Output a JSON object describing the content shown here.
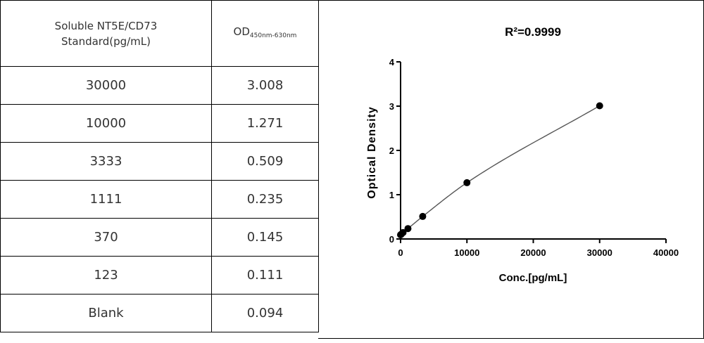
{
  "table": {
    "header_col1": "Soluble NT5E/CD73 Standard(pg/mL)",
    "header_col2_main": "OD",
    "header_col2_sub": "450nm-630nm",
    "rows": [
      {
        "conc": "30000",
        "od": "3.008"
      },
      {
        "conc": "10000",
        "od": "1.271"
      },
      {
        "conc": "3333",
        "od": "0.509"
      },
      {
        "conc": "1111",
        "od": "0.235"
      },
      {
        "conc": "370",
        "od": "0.145"
      },
      {
        "conc": "123",
        "od": "0.111"
      },
      {
        "conc": "Blank",
        "od": "0.094"
      }
    ]
  },
  "chart_data": {
    "type": "scatter",
    "title": "R²=0.9999",
    "xlabel": "Conc.[pg/mL]",
    "ylabel": "Optical Density",
    "xlim": [
      0,
      40000
    ],
    "ylim": [
      0,
      4
    ],
    "x_ticks": [
      "0",
      "10000",
      "20000",
      "30000",
      "40000"
    ],
    "y_ticks": [
      "0",
      "1",
      "2",
      "3",
      "4"
    ],
    "grid": false,
    "fit": "smooth standard curve through points",
    "points": [
      {
        "x": 0,
        "y": 0.094
      },
      {
        "x": 123,
        "y": 0.111
      },
      {
        "x": 370,
        "y": 0.145
      },
      {
        "x": 1111,
        "y": 0.235
      },
      {
        "x": 3333,
        "y": 0.509
      },
      {
        "x": 10000,
        "y": 1.271
      },
      {
        "x": 30000,
        "y": 3.008
      }
    ],
    "marker_color": "#000000",
    "line_color": "#555555"
  }
}
